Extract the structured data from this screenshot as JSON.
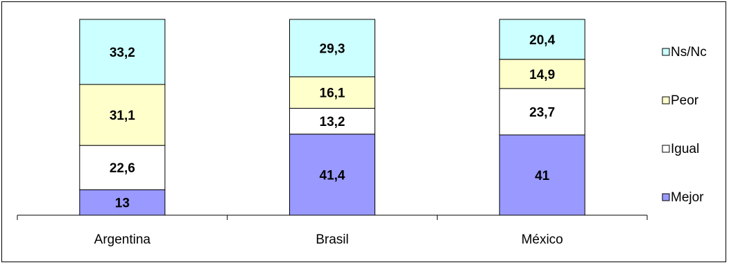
{
  "chart_data": {
    "type": "bar",
    "stacked": true,
    "categories": [
      "Argentina",
      "Brasil",
      "México"
    ],
    "series": [
      {
        "name": "Mejor",
        "color": "#9999ff",
        "values": [
          "13",
          "41,4",
          "41"
        ]
      },
      {
        "name": "Igual",
        "color": "#ffffff",
        "values": [
          "22,6",
          "13,2",
          "23,7"
        ]
      },
      {
        "name": "Peor",
        "color": "#ffffcc",
        "values": [
          "31,1",
          "16,1",
          "14,9"
        ]
      },
      {
        "name": "Ns/Nc",
        "color": "#ccffff",
        "values": [
          "33,2",
          "29,3",
          "20,4"
        ]
      }
    ],
    "ylim": [
      0,
      100
    ],
    "legend": "right",
    "legend_order": [
      "Ns/Nc",
      "Peor",
      "Igual",
      "Mejor"
    ],
    "grid": false
  }
}
